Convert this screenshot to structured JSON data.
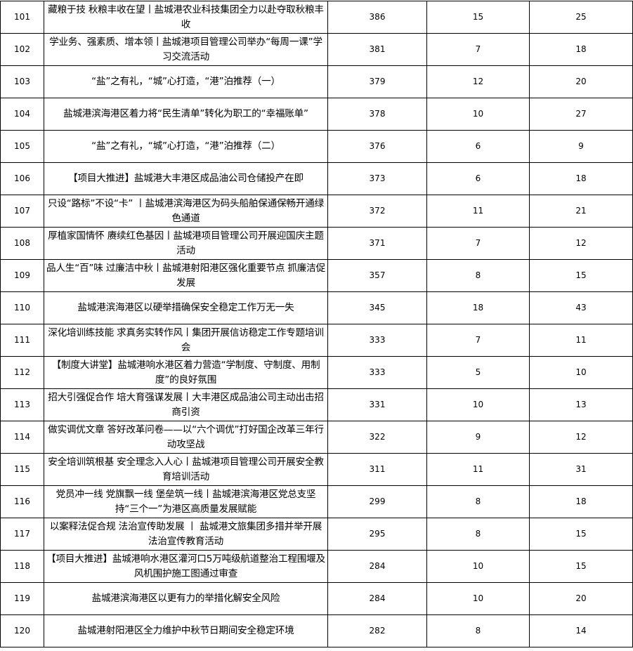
{
  "rows": [
    {
      "no": "101",
      "title": "藏粮于技 秋粮丰收在望丨盐城港农业科技集团全力以赴夺取秋粮丰收",
      "a": "386",
      "b": "15",
      "c": "25"
    },
    {
      "no": "102",
      "title": "学业务、强素质、增本领丨盐城港项目管理公司举办“每周一课”学习交流活动",
      "a": "381",
      "b": "7",
      "c": "18"
    },
    {
      "no": "103",
      "title": "“盐”之有礼，“城”心打造，“港”泊推荐（一）",
      "a": "379",
      "b": "12",
      "c": "20"
    },
    {
      "no": "104",
      "title": "盐城港滨海港区着力将“民生清单”转化为职工的“幸福账单”",
      "a": "378",
      "b": "10",
      "c": "27"
    },
    {
      "no": "105",
      "title": "“盐”之有礼，“城”心打造，“港”泊推荐（二）",
      "a": "376",
      "b": "6",
      "c": "9"
    },
    {
      "no": "106",
      "title": "【项目大推进】盐城港大丰港区成品油公司仓储投产在即",
      "a": "373",
      "b": "6",
      "c": "18"
    },
    {
      "no": "107",
      "title": "只设“路标”不设“卡” 丨盐城港滨海港区为码头船舶保通保畅开通绿色通道",
      "a": "372",
      "b": "11",
      "c": "21"
    },
    {
      "no": "108",
      "title": "厚植家国情怀 赓续红色基因丨盐城港项目管理公司开展迎国庆主题活动",
      "a": "371",
      "b": "7",
      "c": "12"
    },
    {
      "no": "109",
      "title": "品人生“百”味 过廉洁中秋丨盐城港射阳港区强化重要节点 抓廉洁促发展",
      "a": "357",
      "b": "8",
      "c": "15"
    },
    {
      "no": "110",
      "title": "盐城港滨海港区以硬举措确保安全稳定工作万无一失",
      "a": "345",
      "b": "18",
      "c": "43"
    },
    {
      "no": "111",
      "title": "深化培训练技能 求真务实转作风丨集团开展信访稳定工作专题培训会",
      "a": "333",
      "b": "7",
      "c": "11"
    },
    {
      "no": "112",
      "title": "【制度大讲堂】盐城港响水港区着力营造“学制度、守制度、用制度”的良好氛围",
      "a": "333",
      "b": "5",
      "c": "10"
    },
    {
      "no": "113",
      "title": "招大引强促合作 培大育强谋发展丨大丰港区成品油公司主动出击招商引资",
      "a": "331",
      "b": "10",
      "c": "13"
    },
    {
      "no": "114",
      "title": "做实调优文章 答好改革问卷——以“六个调优”打好国企改革三年行动攻坚战",
      "a": "322",
      "b": "9",
      "c": "12"
    },
    {
      "no": "115",
      "title": "安全培训筑根基 安全理念入人心丨盐城港项目管理公司开展安全教育培训活动",
      "a": "311",
      "b": "11",
      "c": "31"
    },
    {
      "no": "116",
      "title": "党员冲一线 党旗飘一线 堡垒筑一线丨盐城港滨海港区党总支坚持“三个一”为港区高质量发展赋能",
      "a": "299",
      "b": "8",
      "c": "18"
    },
    {
      "no": "117",
      "title": "以案释法促合规 法治宣传助发展 丨 盐城港文旅集团多措并举开展法治宣传教育活动",
      "a": "295",
      "b": "8",
      "c": "15"
    },
    {
      "no": "118",
      "title": "【项目大推进】盐城港响水港区灌河口5万吨级航道整治工程围堰及风机围护施工图通过审查",
      "a": "284",
      "b": "10",
      "c": "15"
    },
    {
      "no": "119",
      "title": "盐城港滨海港区以更有力的举措化解安全风险",
      "a": "284",
      "b": "10",
      "c": "20"
    },
    {
      "no": "120",
      "title": "盐城港射阳港区全力维护中秋节日期间安全稳定环境",
      "a": "282",
      "b": "8",
      "c": "14"
    }
  ]
}
